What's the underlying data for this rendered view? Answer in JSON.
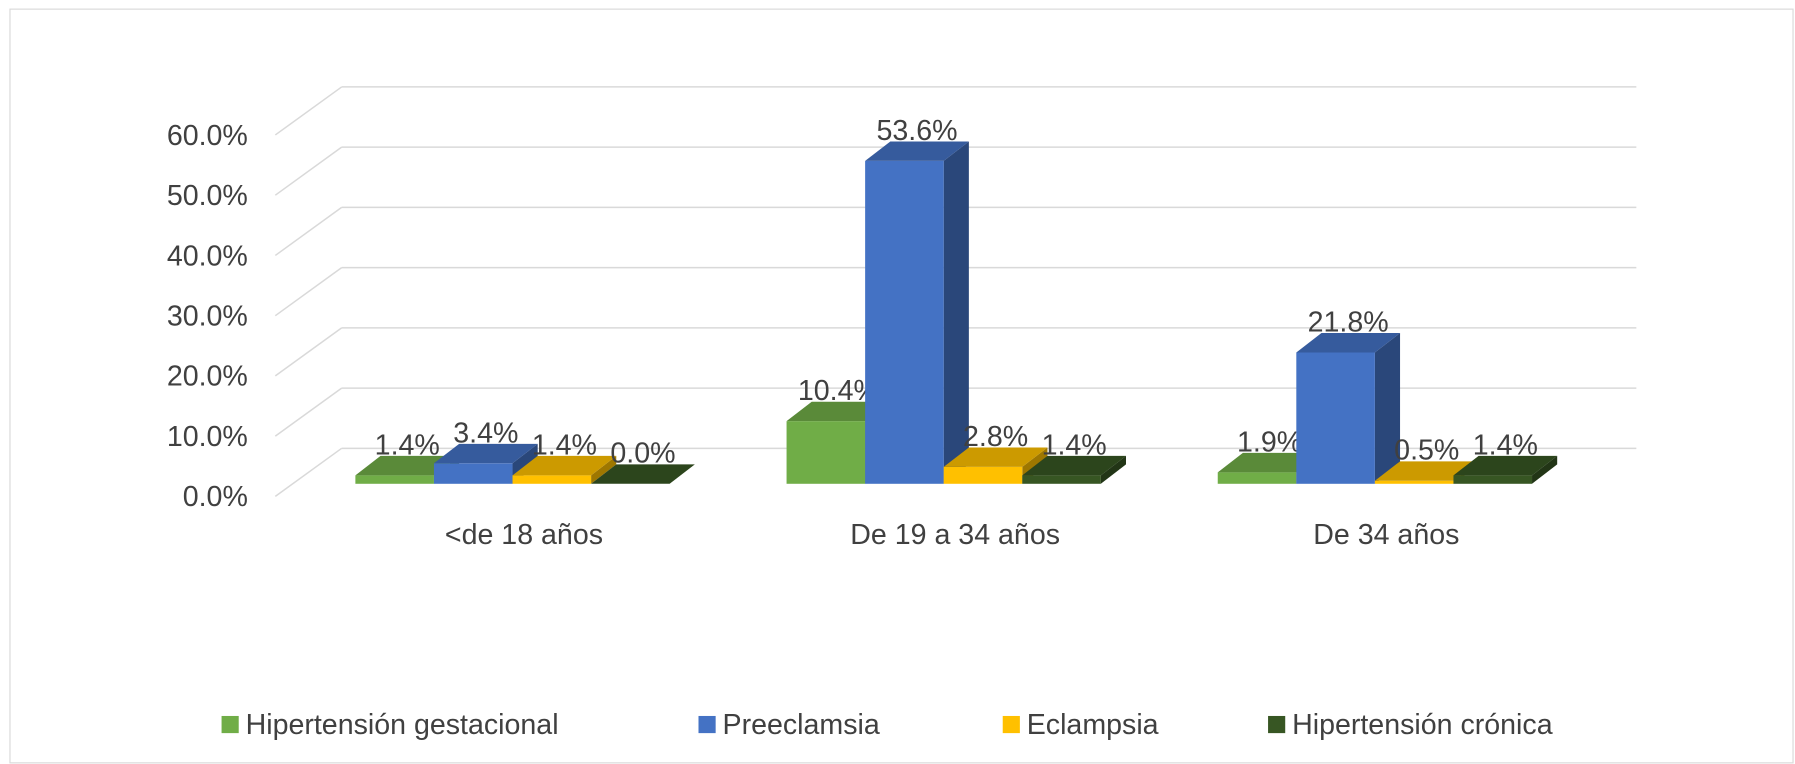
{
  "chart_data": {
    "type": "bar3d",
    "categories": [
      "<de 18 años",
      "De 19 a 34 años",
      "De 34 años"
    ],
    "series": [
      {
        "name": "Hipertensión gestacional",
        "color": "#70ad47",
        "values": [
          1.4,
          10.4,
          1.9
        ],
        "value_labels": [
          "1.4%",
          "10.4%",
          "1.9%"
        ]
      },
      {
        "name": "Preeclamsia",
        "color": "#4472c4",
        "values": [
          3.4,
          53.6,
          21.8
        ],
        "value_labels": [
          "3.4%",
          "53.6%",
          "21.8%"
        ]
      },
      {
        "name": "Eclampsia",
        "color": "#ffc000",
        "values": [
          1.4,
          2.8,
          0.5
        ],
        "value_labels": [
          "1.4%",
          "2.8%",
          "0.5%"
        ]
      },
      {
        "name": "Hipertensión crónica",
        "color": "#375623",
        "values": [
          0.0,
          1.4,
          1.4
        ],
        "value_labels": [
          "0.0%",
          "1.4%",
          "1.4%"
        ]
      }
    ],
    "ylim": [
      0,
      60
    ],
    "yticks": [
      {
        "value": 0,
        "label": "0.0%"
      },
      {
        "value": 10,
        "label": "10.0%"
      },
      {
        "value": 20,
        "label": "20.0%"
      },
      {
        "value": 30,
        "label": "30.0%"
      },
      {
        "value": 40,
        "label": "40.0%"
      },
      {
        "value": 50,
        "label": "50.0%"
      },
      {
        "value": 60,
        "label": "60.0%"
      }
    ],
    "grid": true,
    "legend": "bottom"
  }
}
